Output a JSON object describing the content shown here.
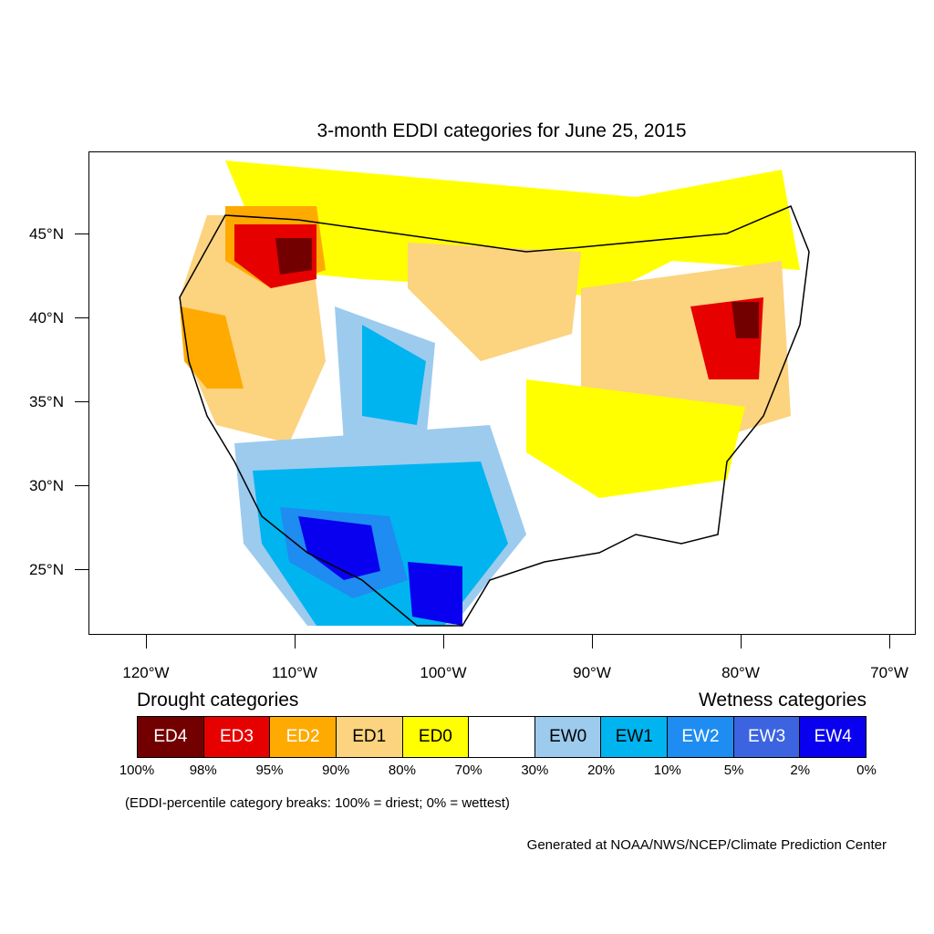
{
  "title": "3-month EDDI categories for June 25, 2015",
  "lat_labels": [
    "45°N",
    "40°N",
    "35°N",
    "30°N",
    "25°N"
  ],
  "lon_labels": [
    "120°W",
    "110°W",
    "100°W",
    "90°W",
    "80°W",
    "70°W"
  ],
  "legend": {
    "drought_title": "Drought categories",
    "wetness_title": "Wetness categories",
    "categories": [
      {
        "label": "ED4",
        "color": "#730000",
        "text_color": "#ffffff"
      },
      {
        "label": "ED3",
        "color": "#e60000",
        "text_color": "#ffffff"
      },
      {
        "label": "ED2",
        "color": "#ffaa00",
        "text_color": "#ffffff"
      },
      {
        "label": "ED1",
        "color": "#fcd37f",
        "text_color": "#000000"
      },
      {
        "label": "ED0",
        "color": "#ffff00",
        "text_color": "#000000"
      },
      {
        "label": "",
        "color": "#ffffff",
        "text_color": "#000000"
      },
      {
        "label": "EW0",
        "color": "#9ccbee",
        "text_color": "#000000"
      },
      {
        "label": "EW1",
        "color": "#00b4f0",
        "text_color": "#000000"
      },
      {
        "label": "EW2",
        "color": "#1e8cf0",
        "text_color": "#ffffff"
      },
      {
        "label": "EW3",
        "color": "#3c64e0",
        "text_color": "#ffffff"
      },
      {
        "label": "EW4",
        "color": "#0a00f0",
        "text_color": "#ffffff"
      }
    ],
    "breaks": [
      "100%",
      "98%",
      "95%",
      "90%",
      "80%",
      "70%",
      "30%",
      "20%",
      "10%",
      "5%",
      "2%",
      "0%"
    ]
  },
  "note": "(EDDI-percentile category breaks: 100% = driest; 0% = wettest)",
  "credit": "Generated at NOAA/NWS/NCEP/Climate Prediction Center"
}
